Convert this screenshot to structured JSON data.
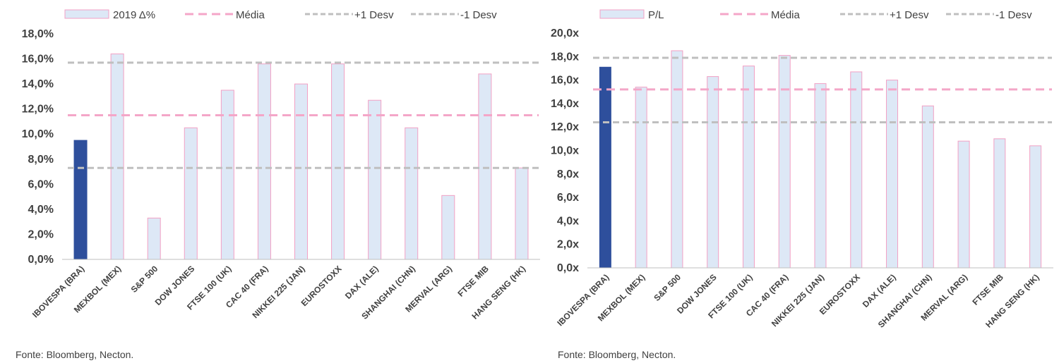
{
  "chart_data": [
    {
      "type": "bar",
      "legend": {
        "bar": "2019 Δ%",
        "mean": "Média",
        "plus1": "+1 Desv",
        "minus1": "-1 Desv"
      },
      "categories": [
        "IBOVESPA (BRA)",
        "MEXBOL (MEX)",
        "S&P 500",
        "DOW JONES",
        "FTSE 100 (UK)",
        "CAC 40 (FRA)",
        "NIKKEI 225 (JAN)",
        "EUROSTOXX",
        "DAX (ALE)",
        "SHANGHAI (CHN)",
        "MERVAL (ARG)",
        "FTSE MIB",
        "HANG SENG (HK)"
      ],
      "series": [
        {
          "name": "2019 Δ%",
          "values": [
            9.5,
            16.4,
            3.3,
            10.5,
            13.5,
            15.6,
            14.0,
            15.6,
            12.7,
            10.5,
            5.1,
            14.8,
            7.3
          ]
        }
      ],
      "reference_lines": {
        "mean": 11.5,
        "plus1": 15.7,
        "minus1": 7.3
      },
      "highlight_index": 0,
      "ylim": [
        0,
        18
      ],
      "ytick_step": 2,
      "yticks": [
        "0,0%",
        "2,0%",
        "4,0%",
        "6,0%",
        "8,0%",
        "10,0%",
        "12,0%",
        "14,0%",
        "16,0%",
        "18,0%"
      ],
      "grid": false,
      "legend_position": "top",
      "source": "Fonte: Bloomberg, Necton.",
      "colors": {
        "bar_fill": "#dde8f6",
        "bar_stroke": "#f2a0c4",
        "highlight": "#2e4f9c",
        "mean": "#f4a6c8",
        "desv": "#bfbfbf"
      }
    },
    {
      "type": "bar",
      "legend": {
        "bar": "P/L",
        "mean": "Média",
        "plus1": "+1 Desv",
        "minus1": "-1 Desv"
      },
      "categories": [
        "IBOVESPA (BRA)",
        "MEXBOL (MEX)",
        "S&P 500",
        "DOW JONES",
        "FTSE 100 (UK)",
        "CAC 40 (FRA)",
        "NIKKEI 225 (JAN)",
        "EUROSTOXX",
        "DAX (ALE)",
        "SHANGHAI (CHN)",
        "MERVAL (ARG)",
        "FTSE MIB",
        "HANG SENG (HK)"
      ],
      "series": [
        {
          "name": "P/L",
          "values": [
            17.1,
            15.4,
            18.5,
            16.3,
            17.2,
            18.1,
            15.7,
            16.7,
            16.0,
            13.8,
            10.8,
            11.0,
            10.4
          ]
        }
      ],
      "reference_lines": {
        "mean": 15.2,
        "plus1": 17.9,
        "minus1": 12.4
      },
      "highlight_index": 0,
      "ylim": [
        0,
        20
      ],
      "ytick_step": 2,
      "yticks": [
        "0,0x",
        "2,0x",
        "4,0x",
        "6,0x",
        "8,0x",
        "10,0x",
        "12,0x",
        "14,0x",
        "16,0x",
        "18,0x",
        "20,0x"
      ],
      "grid": false,
      "legend_position": "top",
      "source": "Fonte: Bloomberg, Necton.",
      "colors": {
        "bar_fill": "#dde8f6",
        "bar_stroke": "#f2a0c4",
        "highlight": "#2e4f9c",
        "mean": "#f4a6c8",
        "desv": "#bfbfbf"
      }
    }
  ]
}
